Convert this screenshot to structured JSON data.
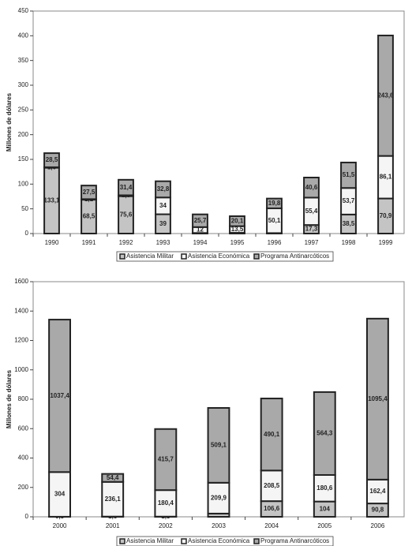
{
  "chart_data": [
    {
      "type": "bar",
      "stacked": true,
      "y_label": "Millones de dólares",
      "categories": [
        "1990",
        "1991",
        "1992",
        "1993",
        "1994",
        "1995",
        "1996",
        "1997",
        "1998",
        "1999"
      ],
      "ylim": [
        0,
        450
      ],
      "yticks": [
        0,
        50,
        100,
        150,
        200,
        250,
        300,
        350,
        400,
        450
      ],
      "series": [
        {
          "name": "Asistencia Militar",
          "color": "#c4c4c4",
          "values": [
            133.1,
            68.5,
            75.6,
            39,
            1.1,
            1.5,
            0.9,
            17.3,
            38.5,
            70.9
          ],
          "value_labels": [
            "133,1",
            "68,5",
            "75,6",
            "39",
            null,
            null,
            null,
            "17,3",
            "38,5",
            "70,9"
          ]
        },
        {
          "name": "Asistencia Económica",
          "color": "#f5f5f5",
          "values": [
            1.0,
            1.1,
            1.8,
            34,
            12,
            13.5,
            50.1,
            55.4,
            53.7,
            86.1
          ],
          "value_labels": [
            "1,0",
            "1,1",
            "1,8",
            "34",
            "12",
            "13,5",
            "50,1",
            "55,4",
            "53,7",
            "86,1"
          ]
        },
        {
          "name": "Programa Antinarcóticos",
          "color": "#a9a9a9",
          "values": [
            28.5,
            27.5,
            31.4,
            32.8,
            25.7,
            20.1,
            19.8,
            40.6,
            51.5,
            243.6
          ],
          "value_labels": [
            "28,5",
            "27,5",
            "31,4",
            "32,8",
            "25,7",
            "20,1",
            "19,8",
            "40,6",
            "51,5",
            "243,6"
          ]
        }
      ]
    },
    {
      "type": "bar",
      "stacked": true,
      "y_label": "Millones de dólares",
      "categories": [
        "2000",
        "2001",
        "2002",
        "2003",
        "2004",
        "2005",
        "2006"
      ],
      "ylim": [
        0,
        1600
      ],
      "yticks": [
        0,
        200,
        400,
        600,
        800,
        1000,
        1200,
        1400,
        1600
      ],
      "series": [
        {
          "name": "Asistencia Militar",
          "color": "#c4c4c4",
          "values": [
            0.5,
            1.5,
            1.3,
            22,
            106.6,
            104,
            90.8
          ],
          "value_labels": [
            "0,5",
            "1,5",
            "1,3",
            null,
            "106,6",
            "104",
            "90,8"
          ]
        },
        {
          "name": "Asistencia Económica",
          "color": "#f5f5f5",
          "values": [
            304,
            236.1,
            180.4,
            209.9,
            208.5,
            180.6,
            162.4
          ],
          "value_labels": [
            "304",
            "236,1",
            "180,4",
            "209,9",
            "208,5",
            "180,6",
            "162,4"
          ]
        },
        {
          "name": "Programa Antinarcóticos",
          "color": "#a9a9a9",
          "values": [
            1037.4,
            54.4,
            415.7,
            509.1,
            490.1,
            564.3,
            1095.4
          ],
          "value_labels": [
            "1037,4",
            "54,4",
            "415,7",
            "509,1",
            "490,1",
            "564,3",
            "1095,4"
          ]
        }
      ]
    }
  ]
}
